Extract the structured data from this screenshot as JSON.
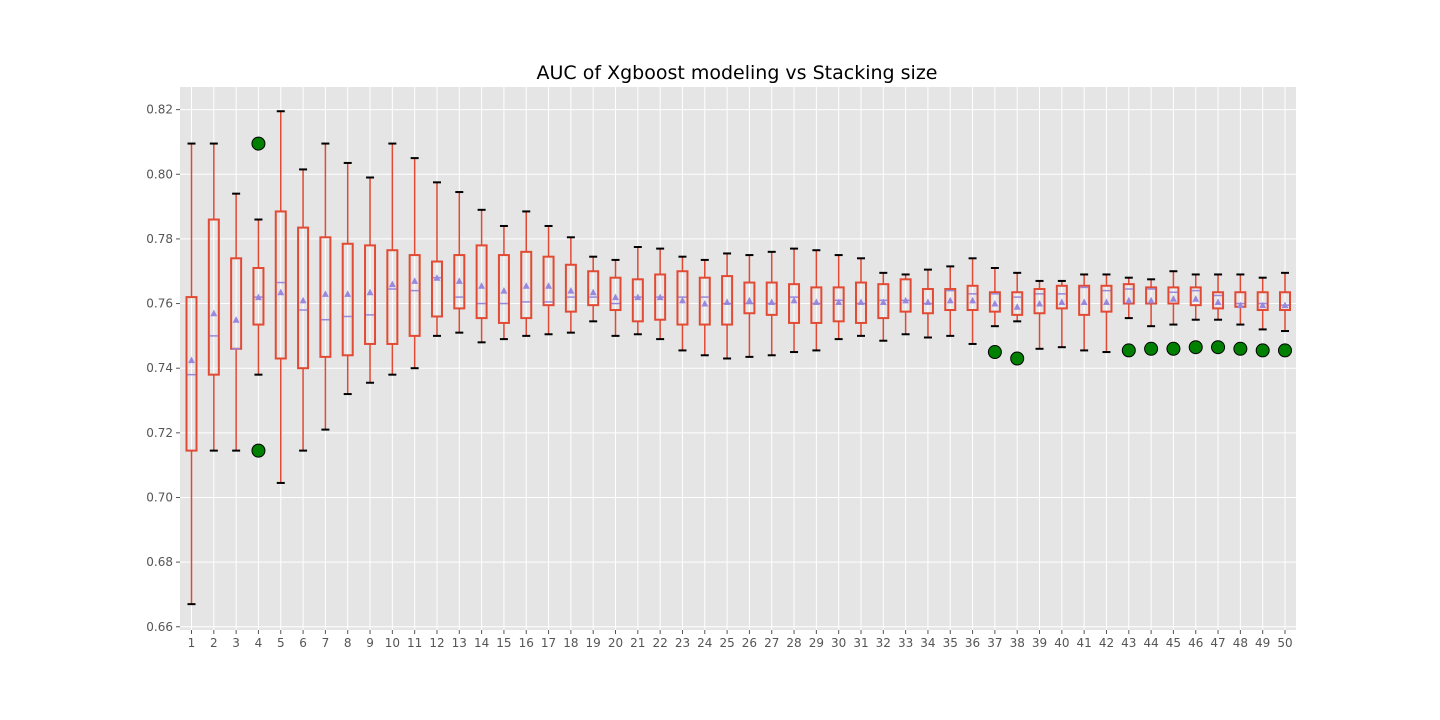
{
  "chart_data": {
    "type": "box",
    "title": "AUC of Xgboost modeling vs Stacking size",
    "xlabel": "",
    "ylabel": "",
    "ylim": [
      0.659,
      0.827
    ],
    "y_ticks": [
      "0.66",
      "0.68",
      "0.70",
      "0.72",
      "0.74",
      "0.76",
      "0.78",
      "0.80",
      "0.82"
    ],
    "grid": true,
    "colors": {
      "plot_background": "#e5e5e5",
      "grid": "#ffffff",
      "box": "#e24a33",
      "cap": "#000000",
      "median": "#9988dd",
      "mean_marker": "#9988dd",
      "outlier_fill": "#008000",
      "outlier_edge": "#000000"
    },
    "categories": [
      "1",
      "2",
      "3",
      "4",
      "5",
      "6",
      "7",
      "8",
      "9",
      "10",
      "11",
      "12",
      "13",
      "14",
      "15",
      "16",
      "17",
      "18",
      "19",
      "20",
      "21",
      "22",
      "23",
      "24",
      "25",
      "26",
      "27",
      "28",
      "29",
      "30",
      "31",
      "32",
      "33",
      "34",
      "35",
      "36",
      "37",
      "38",
      "39",
      "40",
      "41",
      "42",
      "43",
      "44",
      "45",
      "46",
      "47",
      "48",
      "49",
      "50"
    ],
    "boxes": [
      {
        "whislo": 0.667,
        "q1": 0.7145,
        "med": 0.738,
        "q3": 0.762,
        "whishi": 0.8095,
        "mean": 0.7425,
        "fliers": []
      },
      {
        "whislo": 0.7145,
        "q1": 0.738,
        "med": 0.75,
        "q3": 0.786,
        "whishi": 0.8095,
        "mean": 0.757,
        "fliers": []
      },
      {
        "whislo": 0.7145,
        "q1": 0.746,
        "med": 0.746,
        "q3": 0.774,
        "whishi": 0.794,
        "mean": 0.755,
        "fliers": []
      },
      {
        "whislo": 0.738,
        "q1": 0.7535,
        "med": 0.762,
        "q3": 0.771,
        "whishi": 0.786,
        "mean": 0.762,
        "fliers": [
          0.8095,
          0.7145
        ]
      },
      {
        "whislo": 0.7045,
        "q1": 0.743,
        "med": 0.7665,
        "q3": 0.7885,
        "whishi": 0.8195,
        "mean": 0.7635,
        "fliers": []
      },
      {
        "whislo": 0.7145,
        "q1": 0.74,
        "med": 0.758,
        "q3": 0.7835,
        "whishi": 0.8015,
        "mean": 0.761,
        "fliers": []
      },
      {
        "whislo": 0.721,
        "q1": 0.7435,
        "med": 0.755,
        "q3": 0.7805,
        "whishi": 0.8095,
        "mean": 0.763,
        "fliers": []
      },
      {
        "whislo": 0.732,
        "q1": 0.744,
        "med": 0.756,
        "q3": 0.7785,
        "whishi": 0.8035,
        "mean": 0.763,
        "fliers": []
      },
      {
        "whislo": 0.7355,
        "q1": 0.7475,
        "med": 0.7565,
        "q3": 0.778,
        "whishi": 0.799,
        "mean": 0.7635,
        "fliers": []
      },
      {
        "whislo": 0.738,
        "q1": 0.7475,
        "med": 0.7645,
        "q3": 0.7765,
        "whishi": 0.8095,
        "mean": 0.766,
        "fliers": []
      },
      {
        "whislo": 0.74,
        "q1": 0.75,
        "med": 0.764,
        "q3": 0.775,
        "whishi": 0.805,
        "mean": 0.767,
        "fliers": []
      },
      {
        "whislo": 0.75,
        "q1": 0.756,
        "med": 0.768,
        "q3": 0.773,
        "whishi": 0.7975,
        "mean": 0.768,
        "fliers": []
      },
      {
        "whislo": 0.751,
        "q1": 0.7585,
        "med": 0.762,
        "q3": 0.775,
        "whishi": 0.7945,
        "mean": 0.767,
        "fliers": []
      },
      {
        "whislo": 0.748,
        "q1": 0.7555,
        "med": 0.76,
        "q3": 0.778,
        "whishi": 0.789,
        "mean": 0.7655,
        "fliers": []
      },
      {
        "whislo": 0.749,
        "q1": 0.754,
        "med": 0.76,
        "q3": 0.775,
        "whishi": 0.784,
        "mean": 0.764,
        "fliers": []
      },
      {
        "whislo": 0.75,
        "q1": 0.7555,
        "med": 0.7605,
        "q3": 0.776,
        "whishi": 0.7885,
        "mean": 0.7655,
        "fliers": []
      },
      {
        "whislo": 0.7505,
        "q1": 0.7595,
        "med": 0.7605,
        "q3": 0.7745,
        "whishi": 0.784,
        "mean": 0.7655,
        "fliers": []
      },
      {
        "whislo": 0.751,
        "q1": 0.7575,
        "med": 0.762,
        "q3": 0.772,
        "whishi": 0.7805,
        "mean": 0.764,
        "fliers": []
      },
      {
        "whislo": 0.7545,
        "q1": 0.7595,
        "med": 0.762,
        "q3": 0.77,
        "whishi": 0.7745,
        "mean": 0.7635,
        "fliers": []
      },
      {
        "whislo": 0.75,
        "q1": 0.758,
        "med": 0.76,
        "q3": 0.768,
        "whishi": 0.7735,
        "mean": 0.762,
        "fliers": []
      },
      {
        "whislo": 0.7505,
        "q1": 0.7545,
        "med": 0.762,
        "q3": 0.7675,
        "whishi": 0.7775,
        "mean": 0.762,
        "fliers": []
      },
      {
        "whislo": 0.749,
        "q1": 0.755,
        "med": 0.762,
        "q3": 0.769,
        "whishi": 0.777,
        "mean": 0.762,
        "fliers": []
      },
      {
        "whislo": 0.7455,
        "q1": 0.7535,
        "med": 0.762,
        "q3": 0.77,
        "whishi": 0.7745,
        "mean": 0.761,
        "fliers": []
      },
      {
        "whislo": 0.744,
        "q1": 0.7535,
        "med": 0.762,
        "q3": 0.768,
        "whishi": 0.7735,
        "mean": 0.76,
        "fliers": []
      },
      {
        "whislo": 0.743,
        "q1": 0.7535,
        "med": 0.76,
        "q3": 0.7685,
        "whishi": 0.7755,
        "mean": 0.7605,
        "fliers": []
      },
      {
        "whislo": 0.7435,
        "q1": 0.757,
        "med": 0.76,
        "q3": 0.7665,
        "whishi": 0.775,
        "mean": 0.761,
        "fliers": []
      },
      {
        "whislo": 0.744,
        "q1": 0.7565,
        "med": 0.76,
        "q3": 0.7665,
        "whishi": 0.776,
        "mean": 0.7605,
        "fliers": []
      },
      {
        "whislo": 0.745,
        "q1": 0.754,
        "med": 0.762,
        "q3": 0.766,
        "whishi": 0.777,
        "mean": 0.761,
        "fliers": []
      },
      {
        "whislo": 0.7455,
        "q1": 0.754,
        "med": 0.76,
        "q3": 0.765,
        "whishi": 0.7765,
        "mean": 0.7605,
        "fliers": []
      },
      {
        "whislo": 0.749,
        "q1": 0.7545,
        "med": 0.761,
        "q3": 0.765,
        "whishi": 0.775,
        "mean": 0.7605,
        "fliers": []
      },
      {
        "whislo": 0.75,
        "q1": 0.754,
        "med": 0.76,
        "q3": 0.7665,
        "whishi": 0.774,
        "mean": 0.7605,
        "fliers": []
      },
      {
        "whislo": 0.7485,
        "q1": 0.7555,
        "med": 0.761,
        "q3": 0.766,
        "whishi": 0.7695,
        "mean": 0.7605,
        "fliers": []
      },
      {
        "whislo": 0.7505,
        "q1": 0.7575,
        "med": 0.761,
        "q3": 0.7675,
        "whishi": 0.769,
        "mean": 0.761,
        "fliers": []
      },
      {
        "whislo": 0.7495,
        "q1": 0.757,
        "med": 0.76,
        "q3": 0.7645,
        "whishi": 0.7705,
        "mean": 0.7605,
        "fliers": []
      },
      {
        "whislo": 0.75,
        "q1": 0.758,
        "med": 0.764,
        "q3": 0.7645,
        "whishi": 0.7715,
        "mean": 0.761,
        "fliers": []
      },
      {
        "whislo": 0.7475,
        "q1": 0.758,
        "med": 0.763,
        "q3": 0.7655,
        "whishi": 0.774,
        "mean": 0.761,
        "fliers": []
      },
      {
        "whislo": 0.753,
        "q1": 0.7575,
        "med": 0.763,
        "q3": 0.7635,
        "whishi": 0.771,
        "mean": 0.76,
        "fliers": [
          0.745
        ]
      },
      {
        "whislo": 0.7545,
        "q1": 0.7565,
        "med": 0.762,
        "q3": 0.7635,
        "whishi": 0.7695,
        "mean": 0.759,
        "fliers": [
          0.743
        ]
      },
      {
        "whislo": 0.746,
        "q1": 0.757,
        "med": 0.763,
        "q3": 0.7645,
        "whishi": 0.767,
        "mean": 0.76,
        "fliers": []
      },
      {
        "whislo": 0.7465,
        "q1": 0.7585,
        "med": 0.763,
        "q3": 0.7655,
        "whishi": 0.767,
        "mean": 0.7605,
        "fliers": []
      },
      {
        "whislo": 0.7455,
        "q1": 0.7565,
        "med": 0.765,
        "q3": 0.7655,
        "whishi": 0.769,
        "mean": 0.7605,
        "fliers": []
      },
      {
        "whislo": 0.745,
        "q1": 0.7575,
        "med": 0.764,
        "q3": 0.7655,
        "whishi": 0.769,
        "mean": 0.7605,
        "fliers": []
      },
      {
        "whislo": 0.7555,
        "q1": 0.76,
        "med": 0.7645,
        "q3": 0.766,
        "whishi": 0.768,
        "mean": 0.761,
        "fliers": [
          0.7455
        ]
      },
      {
        "whislo": 0.753,
        "q1": 0.76,
        "med": 0.7645,
        "q3": 0.765,
        "whishi": 0.7675,
        "mean": 0.761,
        "fliers": [
          0.746
        ]
      },
      {
        "whislo": 0.7535,
        "q1": 0.76,
        "med": 0.7635,
        "q3": 0.765,
        "whishi": 0.77,
        "mean": 0.7615,
        "fliers": [
          0.746
        ]
      },
      {
        "whislo": 0.755,
        "q1": 0.7595,
        "med": 0.764,
        "q3": 0.765,
        "whishi": 0.769,
        "mean": 0.7615,
        "fliers": [
          0.7465
        ]
      },
      {
        "whislo": 0.755,
        "q1": 0.7585,
        "med": 0.7625,
        "q3": 0.7635,
        "whishi": 0.769,
        "mean": 0.7605,
        "fliers": [
          0.7465
        ]
      },
      {
        "whislo": 0.7535,
        "q1": 0.759,
        "med": 0.76,
        "q3": 0.7635,
        "whishi": 0.769,
        "mean": 0.7595,
        "fliers": [
          0.746
        ]
      },
      {
        "whislo": 0.752,
        "q1": 0.758,
        "med": 0.76,
        "q3": 0.7635,
        "whishi": 0.768,
        "mean": 0.7595,
        "fliers": [
          0.7455
        ]
      },
      {
        "whislo": 0.7515,
        "q1": 0.758,
        "med": 0.7595,
        "q3": 0.7635,
        "whishi": 0.7695,
        "mean": 0.7595,
        "fliers": [
          0.7455
        ]
      }
    ]
  }
}
